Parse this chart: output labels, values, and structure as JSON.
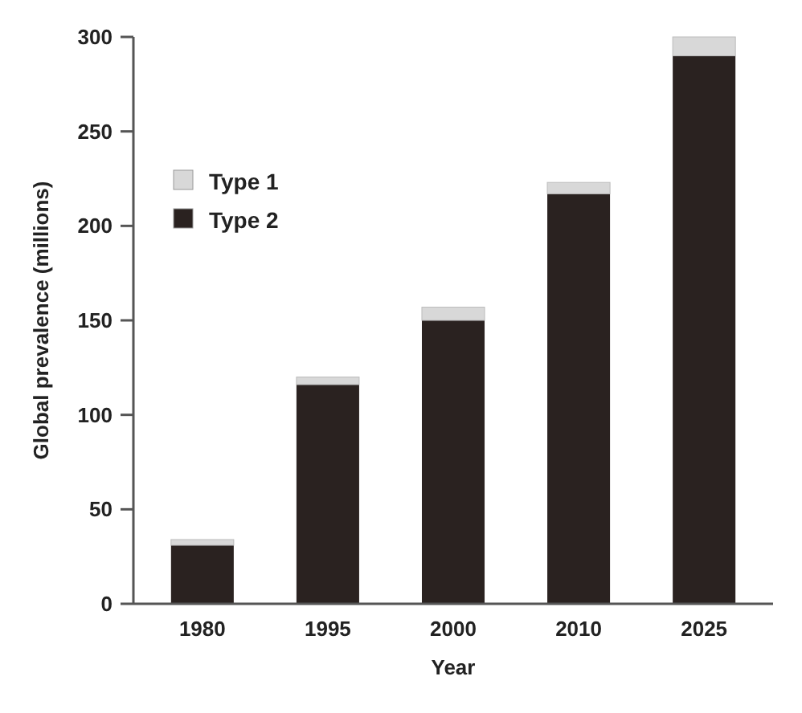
{
  "chart_data": {
    "type": "bar",
    "xlabel": "Year",
    "ylabel": "Global prevalence (millions)",
    "categories": [
      "1980",
      "1995",
      "2000",
      "2010",
      "2025"
    ],
    "stacked": true,
    "ylim": [
      0,
      300
    ],
    "yticks": [
      0,
      50,
      100,
      150,
      200,
      250,
      300
    ],
    "legend": "top left",
    "series": [
      {
        "name": "Type 2",
        "color": "#2a2220",
        "values": [
          31,
          116,
          150,
          217,
          290
        ]
      },
      {
        "name": "Type 1",
        "color": "#d8d8d8",
        "values": [
          3,
          4,
          7,
          6,
          10
        ]
      }
    ]
  }
}
